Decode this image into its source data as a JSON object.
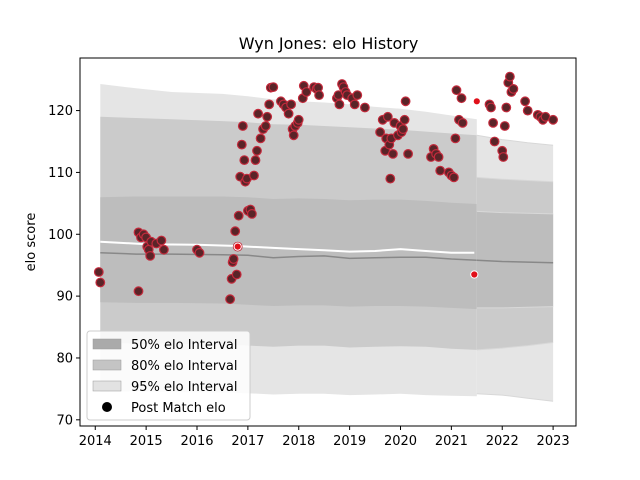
{
  "chart_data": {
    "type": "scatter",
    "title": "Wyn Jones: elo History",
    "xlabel": "",
    "ylabel": "elo score",
    "xlim": [
      2013.7,
      2023.45
    ],
    "ylim": [
      69,
      128.5
    ],
    "x_ticks": [
      2014,
      2015,
      2016,
      2017,
      2018,
      2019,
      2020,
      2021,
      2022,
      2023
    ],
    "y_ticks": [
      70,
      80,
      90,
      100,
      110,
      120
    ],
    "grid": false,
    "legend": {
      "placement": "lower-left",
      "entries": [
        {
          "label": "50% elo Interval",
          "color": "#aaaaaa"
        },
        {
          "label": "80% elo Interval",
          "color": "#c4c4c4"
        },
        {
          "label": "95% elo Interval",
          "color": "#e2e2e2"
        },
        {
          "label": "Post Match elo",
          "color": "#000000"
        }
      ]
    },
    "colors": {
      "band95": "#e5e5e5",
      "band80": "#cbcbcb",
      "band50": "#bdbdbd",
      "mean_line": "#888888",
      "elo_line": "#ffffff",
      "point_fill": "#5a2428",
      "point_edge": "#c42a3c",
      "marker_red": "#e0101a"
    },
    "bands_main": {
      "x": [
        2014.1,
        2014.8,
        2015.5,
        2016.5,
        2017.0,
        2017.5,
        2018.0,
        2018.5,
        2019.0,
        2019.5,
        2020.0,
        2020.5,
        2021.0,
        2021.5
      ],
      "mean": [
        97,
        96.8,
        96.8,
        96.7,
        96.6,
        96.2,
        96.4,
        96.5,
        96.1,
        96.2,
        96.3,
        96.3,
        96.0,
        95.8
      ],
      "lo50": [
        89,
        88.9,
        88.9,
        88.8,
        88.6,
        88.4,
        88.5,
        88.5,
        88.3,
        88.4,
        88.4,
        88.3,
        88.1,
        87.9
      ],
      "hi50": [
        106,
        106.1,
        106.1,
        106.1,
        106.0,
        105.7,
        105.8,
        105.7,
        105.5,
        105.6,
        105.6,
        105.4,
        105.1,
        104.9
      ],
      "lo80": [
        82.5,
        82.3,
        82.3,
        82.2,
        82.0,
        81.8,
        82.0,
        82.0,
        81.7,
        81.8,
        81.9,
        81.8,
        81.5,
        81.3
      ],
      "hi80": [
        119,
        118.8,
        118.6,
        118.3,
        118.1,
        117.8,
        117.7,
        117.5,
        117.3,
        117.1,
        116.9,
        116.6,
        116.3,
        116.0
      ],
      "lo95": [
        74.5,
        74.6,
        74.5,
        74.4,
        74.3,
        74.1,
        74.2,
        74.2,
        74.0,
        74.1,
        74.2,
        74.0,
        73.9,
        73.8
      ],
      "hi95": [
        124.3,
        123.6,
        123.0,
        122.7,
        122.3,
        121.8,
        121.5,
        121.3,
        121.0,
        120.6,
        120.3,
        119.8,
        119.2,
        118.6
      ]
    },
    "bands_tail": {
      "x": [
        2021.5,
        2022.0,
        2022.5,
        2023.0
      ],
      "mean": [
        95.8,
        95.6,
        95.5,
        95.4
      ],
      "lo50": [
        88.1,
        88.1,
        88.2,
        88.3
      ],
      "hi50": [
        103.7,
        103.5,
        103.4,
        103.3
      ],
      "lo80": [
        81.3,
        81.6,
        82.0,
        82.5
      ],
      "hi80": [
        109.2,
        108.9,
        108.7,
        108.5
      ],
      "lo95": [
        74.2,
        74.0,
        73.5,
        73.0
      ],
      "hi95": [
        116.0,
        115.3,
        114.8,
        114.4
      ]
    },
    "elo_line": {
      "x": [
        2014.1,
        2015.0,
        2016.0,
        2016.8,
        2017.0,
        2017.5,
        2018.0,
        2018.5,
        2019.0,
        2019.5,
        2020.0,
        2020.5,
        2021.0,
        2021.45
      ],
      "y": [
        98.8,
        98.4,
        98.3,
        98.1,
        98.0,
        97.8,
        97.6,
        97.4,
        97.2,
        97.3,
        97.6,
        97.3,
        97.0,
        97.0
      ]
    },
    "points": [
      [
        2014.07,
        93.9
      ],
      [
        2014.1,
        92.2
      ],
      [
        2014.85,
        90.8
      ],
      [
        2014.85,
        100.3
      ],
      [
        2014.9,
        99.5
      ],
      [
        2014.95,
        100.0
      ],
      [
        2015.0,
        99.5
      ],
      [
        2015.02,
        98.0
      ],
      [
        2015.05,
        97.5
      ],
      [
        2015.08,
        96.5
      ],
      [
        2015.1,
        98.8
      ],
      [
        2015.2,
        98.5
      ],
      [
        2015.3,
        99.0
      ],
      [
        2015.35,
        97.5
      ],
      [
        2016.0,
        97.5
      ],
      [
        2016.05,
        97.0
      ],
      [
        2016.65,
        89.5
      ],
      [
        2016.68,
        92.8
      ],
      [
        2016.7,
        95.5
      ],
      [
        2016.72,
        96.0
      ],
      [
        2016.75,
        100.5
      ],
      [
        2016.78,
        93.5
      ],
      [
        2016.8,
        98.0
      ],
      [
        2016.82,
        103.0
      ],
      [
        2016.85,
        109.3
      ],
      [
        2016.88,
        114.5
      ],
      [
        2016.9,
        117.5
      ],
      [
        2016.93,
        112.0
      ],
      [
        2016.95,
        108.5
      ],
      [
        2016.98,
        109.0
      ],
      [
        2017.0,
        103.8
      ],
      [
        2017.05,
        104.0
      ],
      [
        2017.08,
        103.3
      ],
      [
        2017.12,
        109.5
      ],
      [
        2017.15,
        112.0
      ],
      [
        2017.18,
        113.5
      ],
      [
        2017.2,
        119.5
      ],
      [
        2017.25,
        115.5
      ],
      [
        2017.3,
        117.0
      ],
      [
        2017.35,
        117.5
      ],
      [
        2017.38,
        119.0
      ],
      [
        2017.42,
        121.0
      ],
      [
        2017.45,
        123.7
      ],
      [
        2017.5,
        123.8
      ],
      [
        2017.65,
        121.5
      ],
      [
        2017.7,
        121.0
      ],
      [
        2017.75,
        120.5
      ],
      [
        2017.8,
        119.5
      ],
      [
        2017.85,
        121.0
      ],
      [
        2017.88,
        117.0
      ],
      [
        2017.9,
        116.0
      ],
      [
        2017.93,
        117.5
      ],
      [
        2017.98,
        118.0
      ],
      [
        2018.0,
        118.5
      ],
      [
        2018.08,
        122.0
      ],
      [
        2018.1,
        124.0
      ],
      [
        2018.15,
        123.0
      ],
      [
        2018.3,
        123.8
      ],
      [
        2018.35,
        123.5
      ],
      [
        2018.38,
        123.7
      ],
      [
        2018.4,
        122.5
      ],
      [
        2018.75,
        122.0
      ],
      [
        2018.78,
        122.5
      ],
      [
        2018.8,
        121.0
      ],
      [
        2018.85,
        124.3
      ],
      [
        2018.88,
        123.8
      ],
      [
        2018.92,
        123.0
      ],
      [
        2018.95,
        122.5
      ],
      [
        2019.05,
        122.0
      ],
      [
        2019.1,
        121.0
      ],
      [
        2019.15,
        122.5
      ],
      [
        2019.3,
        120.5
      ],
      [
        2019.6,
        116.5
      ],
      [
        2019.65,
        118.5
      ],
      [
        2019.7,
        113.5
      ],
      [
        2019.72,
        115.5
      ],
      [
        2019.75,
        119.0
      ],
      [
        2019.78,
        114.5
      ],
      [
        2019.8,
        109.0
      ],
      [
        2019.82,
        115.5
      ],
      [
        2019.85,
        113.0
      ],
      [
        2019.88,
        118.0
      ],
      [
        2019.95,
        116.0
      ],
      [
        2020.0,
        117.5
      ],
      [
        2020.02,
        116.5
      ],
      [
        2020.05,
        117.0
      ],
      [
        2020.08,
        118.5
      ],
      [
        2020.1,
        121.5
      ],
      [
        2020.15,
        113.0
      ],
      [
        2020.6,
        112.5
      ],
      [
        2020.65,
        113.8
      ],
      [
        2020.7,
        113.0
      ],
      [
        2020.75,
        112.5
      ],
      [
        2020.78,
        110.3
      ],
      [
        2020.95,
        110.0
      ],
      [
        2021.0,
        109.5
      ],
      [
        2021.05,
        109.2
      ],
      [
        2021.08,
        115.5
      ],
      [
        2021.1,
        123.3
      ],
      [
        2021.15,
        118.5
      ],
      [
        2021.2,
        122.0
      ],
      [
        2021.22,
        118.0
      ],
      [
        2021.75,
        121.0
      ],
      [
        2021.78,
        120.5
      ],
      [
        2021.82,
        118.0
      ],
      [
        2021.85,
        115.0
      ],
      [
        2022.0,
        113.5
      ],
      [
        2022.02,
        112.5
      ],
      [
        2022.05,
        117.5
      ],
      [
        2022.08,
        120.5
      ],
      [
        2022.12,
        124.5
      ],
      [
        2022.15,
        125.5
      ],
      [
        2022.18,
        123.0
      ],
      [
        2022.22,
        123.5
      ],
      [
        2022.45,
        121.5
      ],
      [
        2022.5,
        120.0
      ],
      [
        2022.7,
        119.3
      ],
      [
        2022.75,
        119.0
      ],
      [
        2022.8,
        118.5
      ],
      [
        2022.85,
        119.0
      ],
      [
        2023.0,
        118.5
      ]
    ],
    "red_markers": [
      [
        2021.5,
        121.5
      ],
      [
        2021.45,
        93.5
      ],
      [
        2016.8,
        98.0
      ]
    ]
  }
}
